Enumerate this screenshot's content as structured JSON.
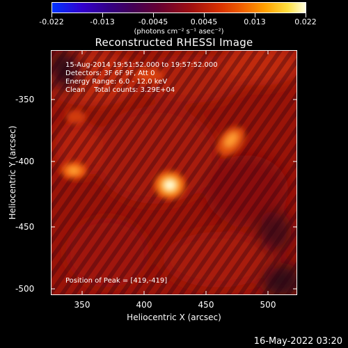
{
  "colorbar": {
    "ticks": [
      "-0.022",
      "-0.013",
      "-0.0045",
      "0.0045",
      "0.013",
      "0.022"
    ],
    "unit": "(photons cm⁻² s⁻¹ asec⁻²)"
  },
  "title": "Reconstructed RHESSI Image",
  "annotations": {
    "time": "15-Aug-2014 19:51:52.000 to 19:57:52.000",
    "detectors": "Detectors: 3F 6F 9F, Att 0",
    "energy": "Energy Range: 6.0 - 12.0 keV",
    "clean": "Clean    Total counts: 3.29E+04",
    "peak": "Position of Peak = [419,-419]"
  },
  "axes": {
    "xlabel": "Heliocentric X (arcsec)",
    "ylabel": "Heliocentric Y (arcsec)",
    "xticks": [
      "350",
      "400",
      "450",
      "500"
    ],
    "yticks": [
      "-350",
      "-400",
      "-450",
      "-500"
    ]
  },
  "footer": {
    "date": "16-May-2022 03:20"
  }
}
